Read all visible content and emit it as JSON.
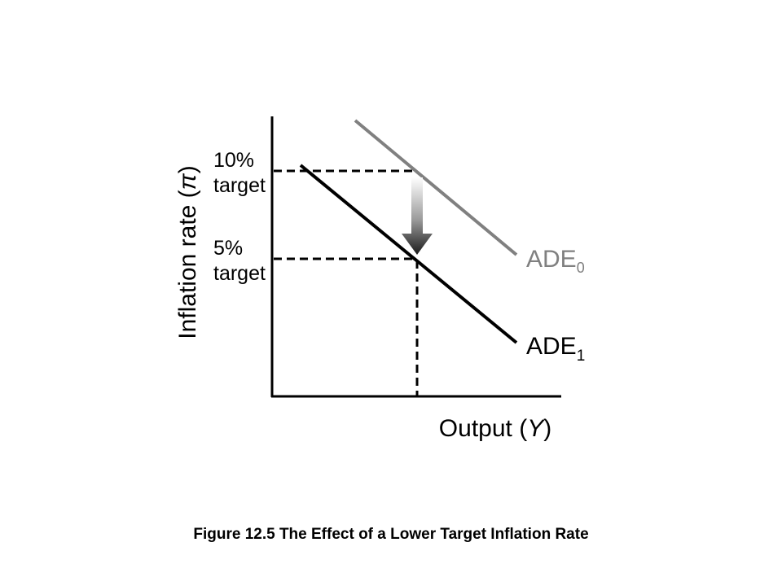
{
  "diagram": {
    "y_axis_label_text": "Inflation rate (",
    "y_axis_label_symbol": "π",
    "y_axis_label_close": ")",
    "x_axis_label_text": "Output (",
    "x_axis_label_symbol": "Y",
    "x_axis_label_close": ")",
    "target_high_value": "10%",
    "target_high_word": "target",
    "target_low_value": "5%",
    "target_low_word": "target",
    "curve_initial_main": "ADE",
    "curve_initial_sub": "0",
    "curve_new_main": "ADE",
    "curve_new_sub": "1",
    "colors": {
      "initial_curve": "#808080",
      "new_curve": "#000000",
      "axes": "#000000"
    }
  },
  "caption": "Figure 12.5 The Effect of a Lower Target Inflation Rate"
}
